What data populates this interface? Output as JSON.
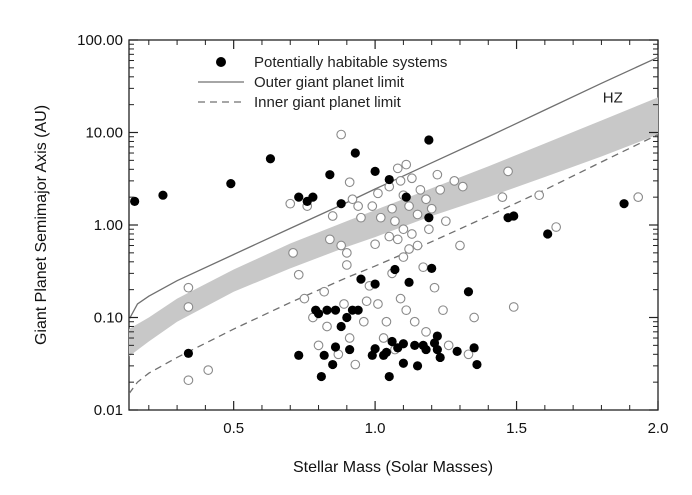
{
  "chart_data": {
    "type": "scatter",
    "xlabel": "Stellar Mass (Solar Masses)",
    "ylabel": "Giant Planet Semimajor Axis (AU)",
    "xlim": [
      0.13,
      2.0
    ],
    "ylim": [
      0.01,
      100
    ],
    "yscale": "log",
    "grid": false,
    "legend_position": "top-left",
    "x_ticks": [
      0.5,
      1.0,
      1.5,
      2.0
    ],
    "x_tick_labels": [
      "0.5",
      "1.0",
      "1.5",
      "2.0"
    ],
    "y_ticks": [
      0.01,
      0.1,
      1,
      10,
      100
    ],
    "y_tick_labels": [
      "0.01",
      "0.10",
      "1.00",
      "10.00",
      "100.00"
    ],
    "legend": [
      {
        "label": "Potentially habitable systems",
        "style": "filled-circle"
      },
      {
        "label": "Outer giant planet limit",
        "style": "solid-line"
      },
      {
        "label": "Inner giant planet limit",
        "style": "dashed-line"
      }
    ],
    "annotations": [
      {
        "text": "HZ",
        "x": 1.84,
        "y": 24
      }
    ],
    "colors": {
      "filled": "#000000",
      "open_stroke": "#8a8a8a",
      "outer_line": "#707070",
      "inner_line": "#707070",
      "hz_band": "#c8c8c8"
    },
    "hz_band": {
      "lower": [
        [
          0.13,
          0.038
        ],
        [
          0.2,
          0.055
        ],
        [
          0.3,
          0.09
        ],
        [
          0.5,
          0.19
        ],
        [
          0.7,
          0.34
        ],
        [
          0.9,
          0.58
        ],
        [
          1.0,
          0.74
        ],
        [
          1.2,
          1.25
        ],
        [
          1.4,
          2.0
        ],
        [
          1.6,
          3.3
        ],
        [
          1.8,
          5.5
        ],
        [
          2.0,
          9.5
        ]
      ],
      "upper": [
        [
          0.13,
          0.075
        ],
        [
          0.2,
          0.1
        ],
        [
          0.3,
          0.16
        ],
        [
          0.5,
          0.33
        ],
        [
          0.7,
          0.63
        ],
        [
          0.9,
          1.1
        ],
        [
          1.0,
          1.45
        ],
        [
          1.2,
          2.5
        ],
        [
          1.4,
          4.3
        ],
        [
          1.6,
          7.6
        ],
        [
          1.8,
          13.5
        ],
        [
          2.0,
          24
        ]
      ]
    },
    "outer_limit": [
      [
        0.13,
        0.095
      ],
      [
        0.16,
        0.14
      ],
      [
        0.2,
        0.17
      ],
      [
        0.3,
        0.25
      ],
      [
        0.5,
        0.48
      ],
      [
        0.7,
        0.92
      ],
      [
        0.9,
        1.75
      ],
      [
        1.0,
        2.45
      ],
      [
        1.2,
        4.7
      ],
      [
        1.4,
        9.0
      ],
      [
        1.6,
        17.5
      ],
      [
        1.8,
        34
      ],
      [
        2.0,
        65
      ]
    ],
    "inner_limit": [
      [
        0.13,
        0.015
      ],
      [
        0.16,
        0.02
      ],
      [
        0.2,
        0.025
      ],
      [
        0.3,
        0.037
      ],
      [
        0.5,
        0.075
      ],
      [
        0.7,
        0.145
      ],
      [
        0.9,
        0.27
      ],
      [
        1.0,
        0.36
      ],
      [
        1.2,
        0.66
      ],
      [
        1.4,
        1.25
      ],
      [
        1.6,
        2.4
      ],
      [
        1.8,
        4.8
      ],
      [
        2.0,
        9.5
      ]
    ],
    "series": [
      {
        "name": "Potentially habitable systems",
        "marker": "filled",
        "x": [
          0.15,
          0.25,
          0.34,
          0.49,
          0.63,
          0.73,
          0.73,
          0.76,
          0.78,
          0.79,
          0.8,
          0.81,
          0.82,
          0.83,
          0.84,
          0.85,
          0.86,
          0.86,
          0.88,
          0.88,
          0.9,
          0.91,
          0.92,
          0.93,
          0.94,
          0.95,
          0.99,
          1.0,
          1.0,
          1.0,
          1.03,
          1.04,
          1.05,
          1.05,
          1.06,
          1.07,
          1.08,
          1.1,
          1.1,
          1.11,
          1.12,
          1.14,
          1.15,
          1.17,
          1.18,
          1.19,
          1.19,
          1.2,
          1.21,
          1.22,
          1.22,
          1.23,
          1.29,
          1.33,
          1.35,
          1.36,
          1.47,
          1.49,
          1.61,
          1.88
        ],
        "y": [
          1.8,
          2.1,
          0.041,
          2.8,
          5.2,
          0.039,
          2.0,
          1.8,
          2.0,
          0.12,
          0.11,
          0.023,
          0.039,
          0.12,
          3.5,
          0.031,
          0.12,
          0.048,
          0.08,
          1.7,
          0.1,
          0.045,
          0.12,
          6.0,
          0.12,
          0.26,
          0.039,
          3.8,
          0.23,
          0.046,
          0.039,
          0.042,
          3.1,
          0.023,
          0.055,
          0.33,
          0.047,
          0.052,
          0.032,
          2.0,
          0.24,
          0.05,
          0.03,
          0.05,
          0.045,
          1.2,
          8.3,
          0.34,
          0.053,
          0.063,
          0.045,
          0.037,
          0.043,
          0.19,
          0.047,
          0.031,
          1.2,
          1.25,
          0.8,
          1.7
        ],
        "y_units": "AU"
      },
      {
        "name": "",
        "marker": "open",
        "x": [
          0.34,
          0.34,
          0.34,
          0.41,
          0.7,
          0.71,
          0.73,
          0.75,
          0.76,
          0.78,
          0.8,
          0.82,
          0.83,
          0.84,
          0.85,
          0.87,
          0.88,
          0.88,
          0.89,
          0.9,
          0.9,
          0.91,
          0.91,
          0.92,
          0.93,
          0.94,
          0.95,
          0.96,
          0.97,
          0.98,
          0.99,
          1.0,
          1.01,
          1.01,
          1.02,
          1.03,
          1.04,
          1.05,
          1.05,
          1.06,
          1.06,
          1.07,
          1.07,
          1.08,
          1.08,
          1.09,
          1.09,
          1.1,
          1.1,
          1.1,
          1.11,
          1.11,
          1.12,
          1.12,
          1.13,
          1.13,
          1.14,
          1.15,
          1.15,
          1.16,
          1.17,
          1.18,
          1.18,
          1.19,
          1.2,
          1.21,
          1.22,
          1.23,
          1.24,
          1.25,
          1.26,
          1.28,
          1.3,
          1.31,
          1.33,
          1.35,
          1.45,
          1.47,
          1.49,
          1.58,
          1.64,
          1.93
        ],
        "y": [
          0.21,
          0.13,
          0.021,
          0.027,
          1.7,
          0.5,
          0.29,
          0.16,
          1.6,
          0.1,
          0.05,
          0.19,
          0.08,
          0.7,
          1.25,
          0.04,
          9.5,
          0.6,
          0.14,
          0.37,
          0.5,
          2.9,
          0.06,
          1.9,
          0.031,
          1.6,
          1.2,
          0.09,
          0.15,
          0.22,
          1.6,
          0.62,
          2.2,
          0.14,
          1.2,
          0.06,
          0.09,
          2.6,
          0.75,
          1.5,
          0.3,
          1.1,
          0.045,
          4.1,
          0.7,
          3.0,
          0.16,
          2.1,
          0.9,
          0.45,
          4.5,
          0.12,
          1.6,
          0.55,
          3.2,
          0.8,
          0.09,
          1.3,
          0.6,
          2.4,
          0.35,
          1.9,
          0.07,
          0.9,
          1.5,
          0.21,
          3.5,
          2.4,
          0.12,
          1.1,
          0.05,
          3.0,
          0.6,
          2.6,
          0.04,
          0.1,
          2.0,
          3.8,
          0.13,
          2.1,
          0.95,
          2.0
        ],
        "y_units": "AU"
      }
    ]
  }
}
